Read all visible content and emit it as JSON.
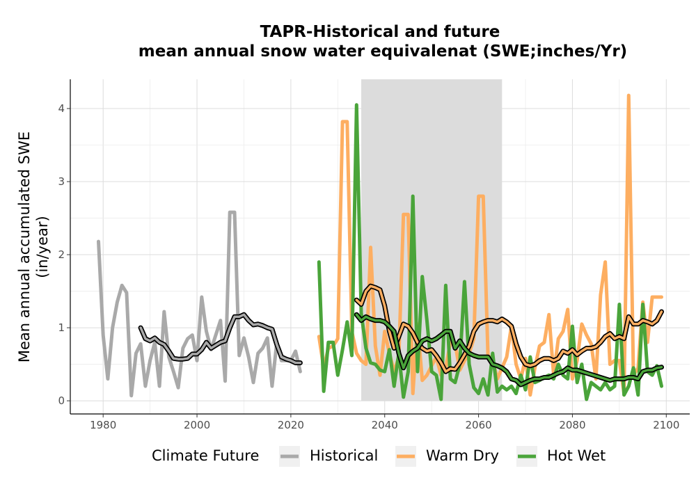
{
  "chart_data": {
    "type": "line",
    "title": "TAPR-Historical and future",
    "subtitle": "mean annual snow water equivalenat (SWE;inches/Yr)",
    "xlabel": "",
    "ylabel_line1": "Mean annual accumulated SWE",
    "ylabel_line2": "(in/year)",
    "xlim": [
      1973,
      2105
    ],
    "ylim": [
      -0.18,
      4.4
    ],
    "x_ticks": [
      1980,
      2000,
      2020,
      2040,
      2060,
      2080,
      2100
    ],
    "y_ticks": [
      0,
      1,
      2,
      3,
      4
    ],
    "grid": true,
    "shaded_period": [
      2035,
      2065
    ],
    "legend": {
      "title": "Climate Future",
      "position": "bottom",
      "entries": [
        "Historical",
        "Warm Dry",
        "Hot Wet"
      ]
    },
    "colors": {
      "Historical": "#a9a9a9",
      "Warm Dry": "#fdae61",
      "Hot Wet": "#4aa43a",
      "smooth": "#000000",
      "shade": "#dcdcdc"
    },
    "series": [
      {
        "name": "Historical",
        "x": [
          1979,
          1980,
          1981,
          1982,
          1983,
          1984,
          1985,
          1986,
          1987,
          1988,
          1989,
          1990,
          1991,
          1992,
          1993,
          1994,
          1995,
          1996,
          1997,
          1998,
          1999,
          2000,
          2001,
          2002,
          2003,
          2004,
          2005,
          2006,
          2007,
          2008,
          2009,
          2010,
          2011,
          2012,
          2013,
          2014,
          2015,
          2016,
          2017,
          2018,
          2019,
          2020,
          2021,
          2022
        ],
        "y": [
          2.18,
          0.9,
          0.3,
          1.0,
          1.35,
          1.58,
          1.48,
          0.07,
          0.65,
          0.78,
          0.2,
          0.55,
          0.8,
          0.2,
          1.22,
          0.6,
          0.4,
          0.18,
          0.72,
          0.85,
          0.9,
          0.55,
          1.42,
          0.95,
          0.7,
          0.9,
          1.1,
          0.27,
          2.58,
          2.58,
          0.62,
          0.86,
          0.6,
          0.25,
          0.65,
          0.72,
          0.86,
          0.2,
          0.8,
          0.55,
          0.55,
          0.55,
          0.68,
          0.4
        ]
      },
      {
        "name": "Historical smooth",
        "x": [
          1988,
          1989,
          1990,
          1991,
          1992,
          1993,
          1994,
          1995,
          1996,
          1997,
          1998,
          1999,
          2000,
          2001,
          2002,
          2003,
          2004,
          2005,
          2006,
          2007,
          2008,
          2009,
          2010,
          2011,
          2012,
          2013,
          2014,
          2015,
          2016,
          2017,
          2018,
          2019,
          2020,
          2021,
          2022
        ],
        "y": [
          1.0,
          0.85,
          0.82,
          0.86,
          0.8,
          0.77,
          0.68,
          0.58,
          0.57,
          0.57,
          0.58,
          0.64,
          0.64,
          0.7,
          0.8,
          0.72,
          0.76,
          0.8,
          0.82,
          1.0,
          1.15,
          1.15,
          1.18,
          1.1,
          1.04,
          1.05,
          1.03,
          1.0,
          0.98,
          0.77,
          0.6,
          0.57,
          0.55,
          0.52,
          0.52
        ]
      },
      {
        "name": "Warm Dry",
        "x": [
          2026,
          2027,
          2028,
          2029,
          2030,
          2031,
          2032,
          2033,
          2034,
          2035,
          2036,
          2037,
          2038,
          2039,
          2040,
          2041,
          2042,
          2043,
          2044,
          2045,
          2046,
          2047,
          2048,
          2049,
          2050,
          2051,
          2052,
          2053,
          2054,
          2055,
          2056,
          2057,
          2058,
          2059,
          2060,
          2061,
          2062,
          2063,
          2064,
          2065,
          2066,
          2067,
          2068,
          2069,
          2070,
          2071,
          2072,
          2073,
          2074,
          2075,
          2076,
          2077,
          2078,
          2079,
          2080,
          2081,
          2082,
          2083,
          2084,
          2085,
          2086,
          2087,
          2088,
          2089,
          2090,
          2091,
          2092,
          2093,
          2094,
          2095,
          2096,
          2097,
          2098,
          2099
        ],
        "y": [
          0.88,
          0.45,
          0.72,
          0.75,
          0.85,
          3.82,
          3.82,
          0.95,
          0.65,
          0.55,
          0.5,
          2.1,
          0.75,
          0.35,
          0.95,
          0.65,
          0.4,
          0.6,
          2.55,
          2.55,
          0.1,
          1.05,
          0.28,
          0.35,
          0.48,
          0.6,
          0.35,
          0.45,
          0.8,
          0.78,
          0.42,
          0.55,
          0.65,
          0.85,
          2.8,
          2.8,
          0.62,
          0.55,
          0.3,
          0.45,
          0.6,
          1.02,
          0.5,
          0.3,
          0.58,
          0.08,
          0.45,
          0.75,
          0.8,
          1.18,
          0.35,
          0.85,
          0.95,
          1.25,
          0.3,
          0.55,
          1.05,
          0.9,
          0.78,
          0.3,
          1.45,
          1.9,
          0.5,
          0.55,
          0.55,
          0.1,
          4.18,
          0.35,
          0.45,
          1.35,
          0.8,
          1.42,
          1.42,
          1.42
        ]
      },
      {
        "name": "Warm Dry smooth",
        "x": [
          2034,
          2035,
          2036,
          2037,
          2038,
          2039,
          2040,
          2041,
          2042,
          2043,
          2044,
          2045,
          2046,
          2047,
          2048,
          2049,
          2050,
          2051,
          2052,
          2053,
          2054,
          2055,
          2056,
          2057,
          2058,
          2059,
          2060,
          2061,
          2062,
          2063,
          2064,
          2065,
          2066,
          2067,
          2068,
          2069,
          2070,
          2071,
          2072,
          2073,
          2074,
          2075,
          2076,
          2077,
          2078,
          2079,
          2080,
          2081,
          2082,
          2083,
          2084,
          2085,
          2086,
          2087,
          2088,
          2089,
          2090,
          2091,
          2092,
          2093,
          2094,
          2095,
          2096,
          2097,
          2098,
          2099
        ],
        "y": [
          1.38,
          1.32,
          1.5,
          1.57,
          1.55,
          1.52,
          1.3,
          0.95,
          0.72,
          0.88,
          1.05,
          1.02,
          0.93,
          0.8,
          0.72,
          0.68,
          0.7,
          0.62,
          0.52,
          0.4,
          0.44,
          0.43,
          0.52,
          0.63,
          0.75,
          0.95,
          1.05,
          1.08,
          1.1,
          1.1,
          1.08,
          1.12,
          1.08,
          1.02,
          0.78,
          0.6,
          0.5,
          0.48,
          0.5,
          0.55,
          0.58,
          0.58,
          0.55,
          0.58,
          0.68,
          0.65,
          0.7,
          0.63,
          0.68,
          0.72,
          0.72,
          0.74,
          0.8,
          0.88,
          0.92,
          0.85,
          0.88,
          0.85,
          1.15,
          1.05,
          1.05,
          1.1,
          1.08,
          1.05,
          1.1,
          1.22
        ]
      },
      {
        "name": "Hot Wet",
        "x": [
          2026,
          2027,
          2028,
          2029,
          2030,
          2031,
          2032,
          2033,
          2034,
          2035,
          2036,
          2037,
          2038,
          2039,
          2040,
          2041,
          2042,
          2043,
          2044,
          2045,
          2046,
          2047,
          2048,
          2049,
          2050,
          2051,
          2052,
          2053,
          2054,
          2055,
          2056,
          2057,
          2058,
          2059,
          2060,
          2061,
          2062,
          2063,
          2064,
          2065,
          2066,
          2067,
          2068,
          2069,
          2070,
          2071,
          2072,
          2073,
          2074,
          2075,
          2076,
          2077,
          2078,
          2079,
          2080,
          2081,
          2082,
          2083,
          2084,
          2085,
          2086,
          2087,
          2088,
          2089,
          2090,
          2091,
          2092,
          2093,
          2094,
          2095,
          2096,
          2097,
          2098,
          2099
        ],
        "y": [
          1.9,
          0.13,
          0.8,
          0.8,
          0.35,
          0.7,
          1.08,
          0.62,
          4.05,
          1.2,
          0.72,
          0.52,
          0.5,
          0.42,
          0.4,
          0.7,
          0.2,
          0.65,
          0.05,
          0.4,
          2.8,
          0.4,
          1.7,
          1.1,
          0.4,
          0.35,
          0.02,
          1.58,
          0.3,
          0.25,
          0.5,
          1.63,
          0.5,
          0.18,
          0.1,
          0.3,
          0.08,
          0.65,
          0.12,
          0.2,
          0.15,
          0.2,
          0.1,
          0.35,
          0.15,
          0.6,
          0.25,
          0.28,
          0.32,
          0.35,
          0.3,
          0.5,
          0.35,
          0.3,
          1.02,
          0.25,
          0.5,
          0.02,
          0.25,
          0.2,
          0.15,
          0.25,
          0.15,
          0.2,
          1.32,
          0.08,
          0.2,
          0.45,
          0.08,
          1.32,
          0.4,
          0.35,
          0.48,
          0.2
        ]
      },
      {
        "name": "Hot Wet smooth",
        "x": [
          2034,
          2035,
          2036,
          2037,
          2038,
          2039,
          2040,
          2041,
          2042,
          2043,
          2044,
          2045,
          2046,
          2047,
          2048,
          2049,
          2050,
          2051,
          2052,
          2053,
          2054,
          2055,
          2056,
          2057,
          2058,
          2059,
          2060,
          2061,
          2062,
          2063,
          2064,
          2065,
          2066,
          2067,
          2068,
          2069,
          2070,
          2071,
          2072,
          2073,
          2074,
          2075,
          2076,
          2077,
          2078,
          2079,
          2080,
          2081,
          2082,
          2083,
          2084,
          2085,
          2086,
          2087,
          2088,
          2089,
          2090,
          2091,
          2092,
          2093,
          2094,
          2095,
          2096,
          2097,
          2098,
          2099
        ],
        "y": [
          1.18,
          1.1,
          1.15,
          1.12,
          1.1,
          1.1,
          1.08,
          1.02,
          0.95,
          0.65,
          0.45,
          0.62,
          0.68,
          0.72,
          0.82,
          0.85,
          0.82,
          0.85,
          0.9,
          0.95,
          0.95,
          0.72,
          0.82,
          0.72,
          0.65,
          0.62,
          0.6,
          0.6,
          0.6,
          0.5,
          0.48,
          0.45,
          0.4,
          0.3,
          0.28,
          0.22,
          0.25,
          0.28,
          0.3,
          0.3,
          0.32,
          0.32,
          0.35,
          0.38,
          0.4,
          0.45,
          0.42,
          0.42,
          0.4,
          0.38,
          0.36,
          0.34,
          0.32,
          0.3,
          0.28,
          0.3,
          0.3,
          0.3,
          0.32,
          0.32,
          0.3,
          0.4,
          0.42,
          0.42,
          0.45,
          0.46
        ]
      }
    ]
  }
}
